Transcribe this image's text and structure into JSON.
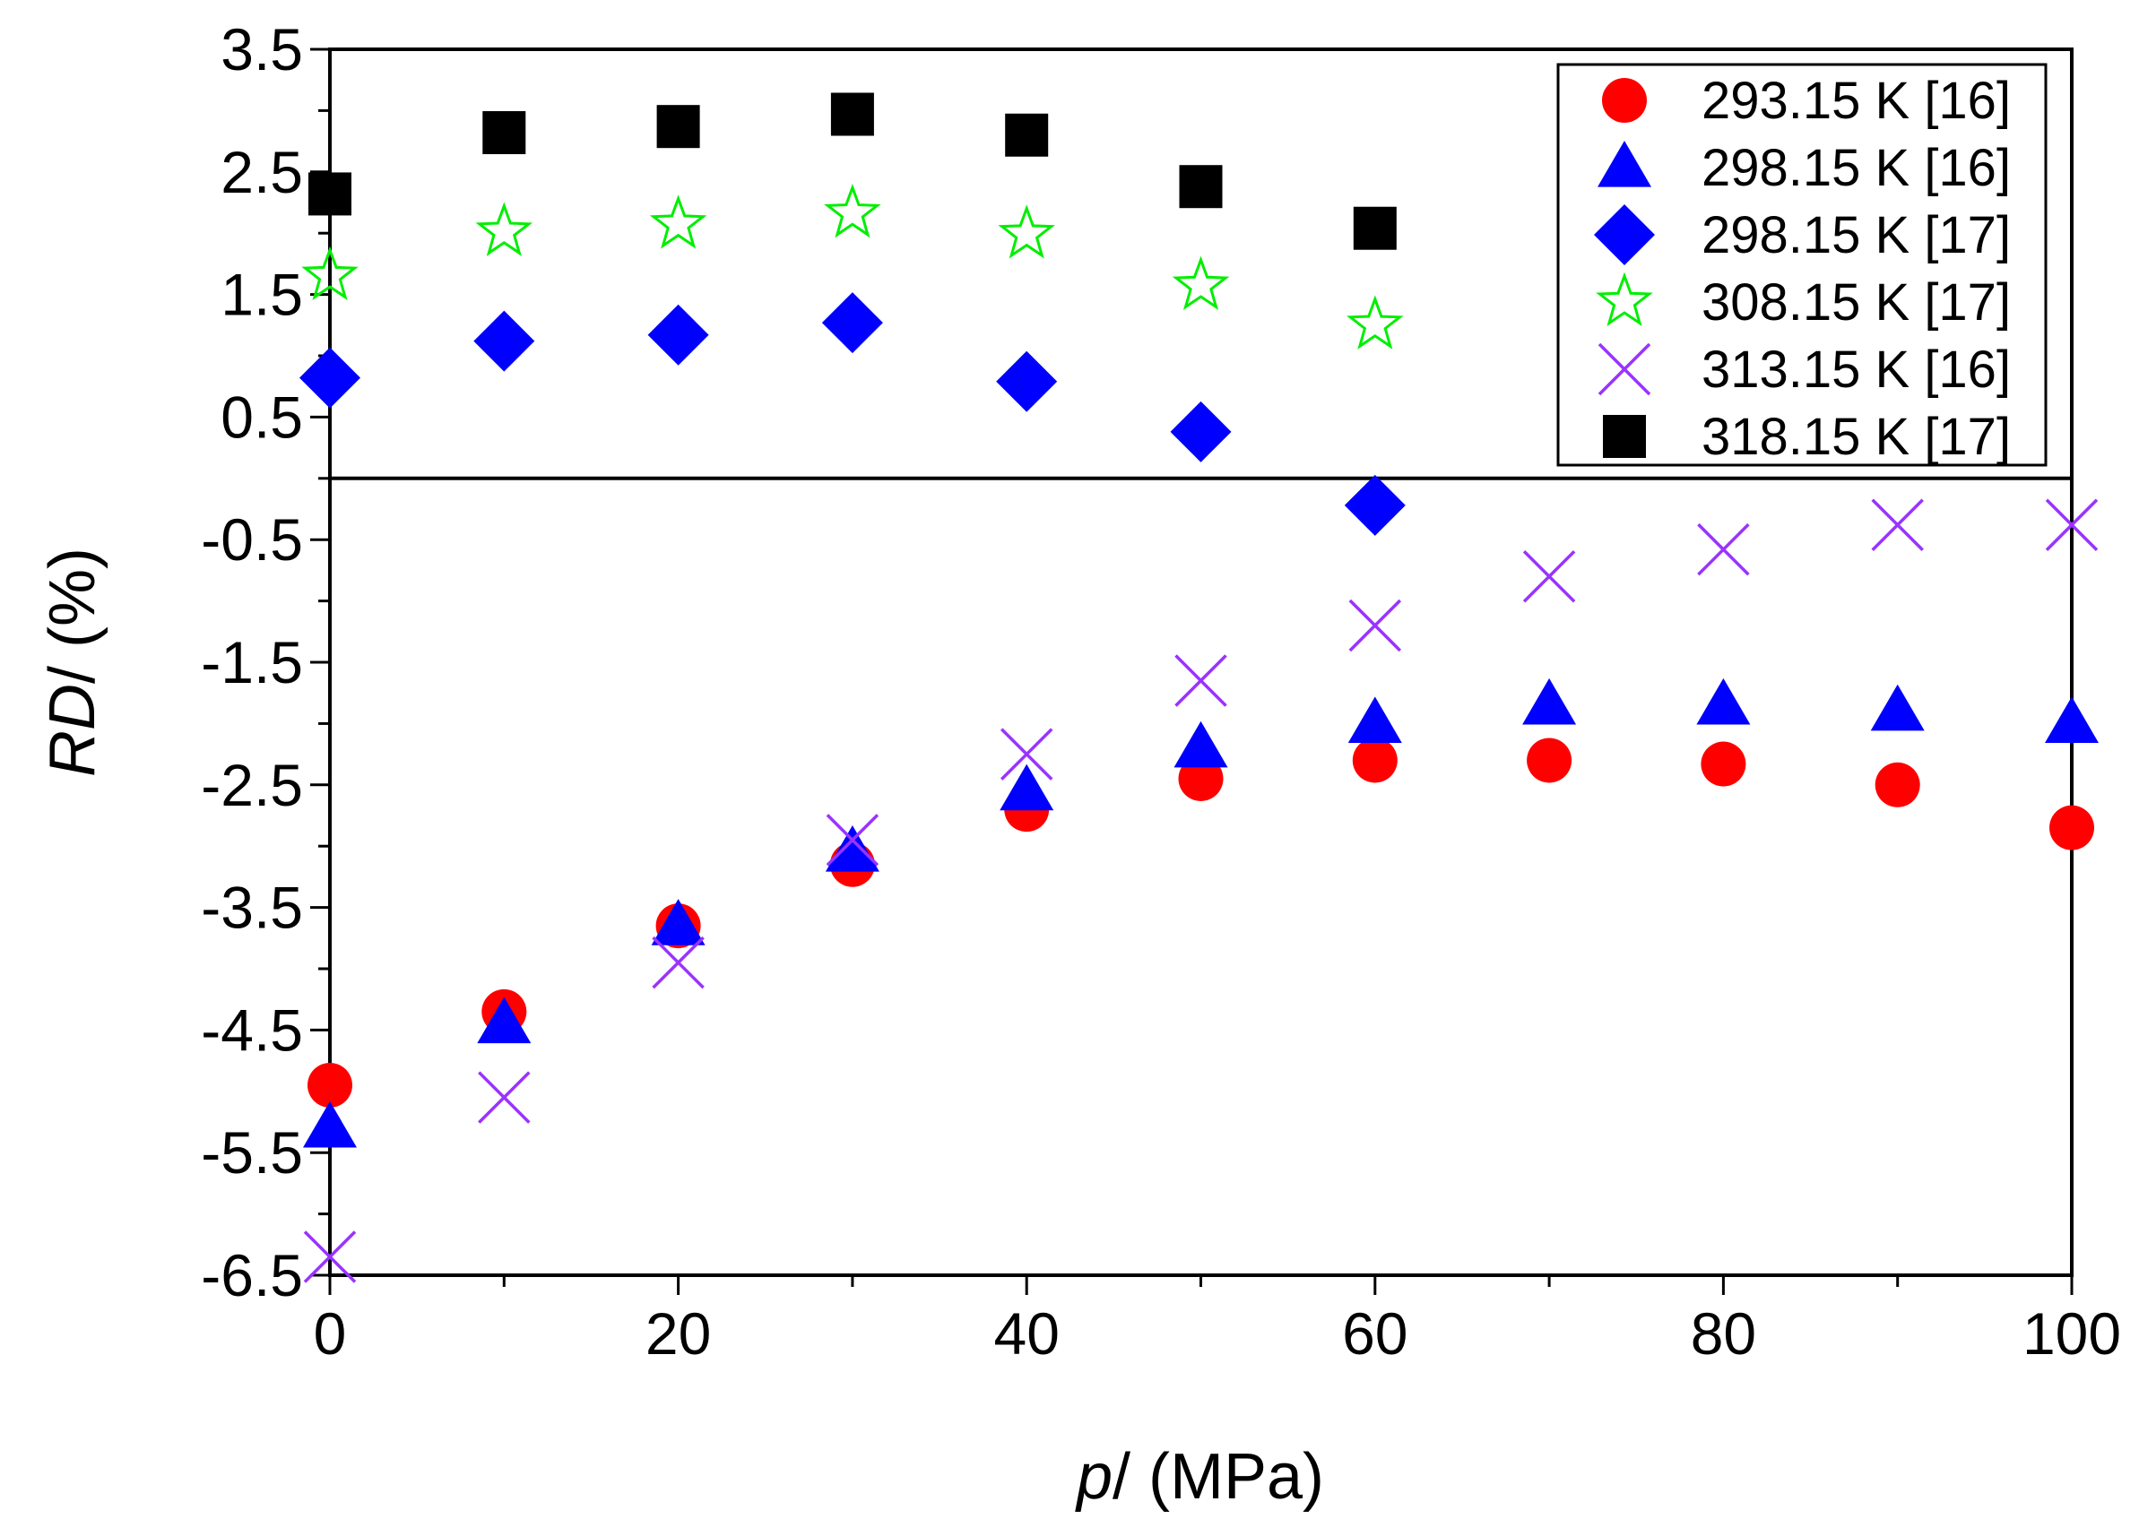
{
  "chart_data": {
    "type": "scatter",
    "title": "",
    "xlabel": {
      "italic": "p",
      "rest": "/ (MPa)"
    },
    "ylabel": {
      "italic": "RD",
      "rest": "/ (%)"
    },
    "xlim": [
      0,
      100
    ],
    "ylim": [
      -6.5,
      3.5
    ],
    "xticks": [
      0,
      20,
      40,
      60,
      80,
      100
    ],
    "xtick_labels": [
      "0",
      "20",
      "40",
      "60",
      "80",
      "100"
    ],
    "yticks": [
      3.5,
      2.5,
      1.5,
      0.5,
      -0.5,
      -1.5,
      -2.5,
      -3.5,
      -4.5,
      -5.5,
      -6.5
    ],
    "ytick_labels": [
      "3.5",
      "2.5",
      "1.5",
      "0.5",
      "-0.5",
      "-1.5",
      "-2.5",
      "-3.5",
      "-4.5",
      "-5.5",
      "-6.5"
    ],
    "x_minor_step": 10,
    "y_minor_step": 0.5,
    "zero_line": true,
    "grid": false,
    "legend_position": "top-right",
    "series": [
      {
        "name": "293.15 K [16]",
        "marker": "circle",
        "color": "#ff0000",
        "x": [
          0,
          10,
          20,
          30,
          40,
          50,
          60,
          70,
          80,
          90,
          100
        ],
        "y": [
          -4.95,
          -4.35,
          -3.65,
          -3.15,
          -2.7,
          -2.45,
          -2.3,
          -2.3,
          -2.33,
          -2.5,
          -2.85
        ]
      },
      {
        "name": "298.15 K [16]",
        "marker": "triangle",
        "color": "#0000ff",
        "x": [
          0,
          10,
          20,
          30,
          40,
          50,
          60,
          70,
          80,
          90,
          100
        ],
        "y": [
          -5.3,
          -4.45,
          -3.65,
          -3.05,
          -2.55,
          -2.2,
          -2.0,
          -1.85,
          -1.85,
          -1.9,
          -2.0
        ]
      },
      {
        "name": "298.15 K [17]",
        "marker": "diamond",
        "color": "#0000ff",
        "x": [
          0,
          10,
          20,
          30,
          40,
          50,
          60
        ],
        "y": [
          0.82,
          1.12,
          1.17,
          1.27,
          0.79,
          0.38,
          -0.22
        ]
      },
      {
        "name": "308.15 K [17]",
        "marker": "star",
        "color": "#00ee00",
        "x": [
          0,
          10,
          20,
          30,
          40,
          50,
          60
        ],
        "y": [
          1.65,
          2.01,
          2.07,
          2.16,
          1.99,
          1.57,
          1.25
        ]
      },
      {
        "name": "313.15 K [16]",
        "marker": "x",
        "color": "#9933ff",
        "x": [
          0,
          10,
          20,
          30,
          40,
          50,
          60,
          70,
          80,
          90,
          100
        ],
        "y": [
          -6.35,
          -5.05,
          -3.95,
          -2.95,
          -2.25,
          -1.65,
          -1.2,
          -0.8,
          -0.58,
          -0.38,
          -0.38
        ]
      },
      {
        "name": "318.15 K [17]",
        "marker": "square",
        "color": "#000000",
        "x": [
          0,
          10,
          20,
          30,
          40,
          50,
          60
        ],
        "y": [
          2.32,
          2.82,
          2.87,
          2.97,
          2.8,
          2.38,
          2.04
        ]
      }
    ]
  }
}
